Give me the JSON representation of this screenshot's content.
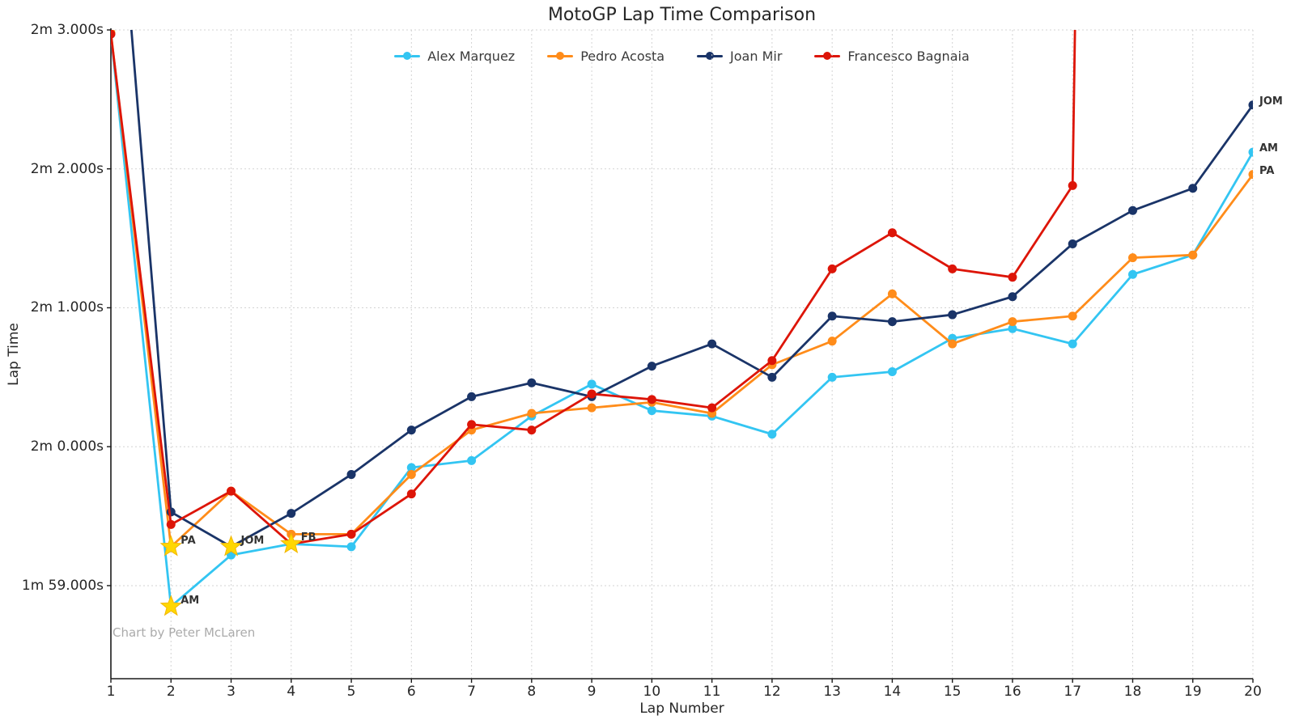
{
  "chart_data": {
    "type": "line",
    "title": "MotoGP Lap Time Comparison",
    "xlabel": "Lap Number",
    "ylabel": "Lap Time",
    "x": [
      1,
      2,
      3,
      4,
      5,
      6,
      7,
      8,
      9,
      10,
      11,
      12,
      13,
      14,
      15,
      16,
      17,
      18,
      19,
      20
    ],
    "xlim": [
      1,
      20
    ],
    "ylim_seconds": [
      118.33,
      123.0
    ],
    "yticks_seconds": [
      119,
      120,
      121,
      122,
      123
    ],
    "ytick_labels": [
      "1m 59.000s",
      "2m 0.000s",
      "2m 1.000s",
      "2m 2.000s",
      "2m 3.000s"
    ],
    "grid": true,
    "grid_color": "#cfcfcf",
    "legend_position": "top-center",
    "series": [
      {
        "name": "Alex Marquez",
        "end_label": "AM",
        "color": "#33c5f2",
        "values": [
          122.97,
          118.85,
          119.22,
          119.3,
          119.28,
          119.85,
          119.9,
          120.22,
          120.45,
          120.26,
          120.22,
          120.09,
          120.5,
          120.54,
          120.78,
          120.85,
          120.74,
          121.24,
          121.38,
          122.12
        ]
      },
      {
        "name": "Pedro Acosta",
        "end_label": "PA",
        "color": "#ff8c1a",
        "values": [
          122.98,
          119.28,
          119.68,
          119.37,
          119.37,
          119.8,
          120.12,
          120.24,
          120.28,
          120.32,
          120.24,
          120.59,
          120.76,
          121.1,
          120.74,
          120.9,
          120.94,
          121.36,
          121.38,
          121.96
        ]
      },
      {
        "name": "Joan Mir",
        "end_label": "JOM",
        "color": "#1a3468",
        "values": [
          124.8,
          119.53,
          119.28,
          119.52,
          119.8,
          120.12,
          120.36,
          120.46,
          120.36,
          120.58,
          120.74,
          120.5,
          120.94,
          120.9,
          120.95,
          121.08,
          121.46,
          121.7,
          121.86,
          122.46
        ]
      },
      {
        "name": "Francesco Bagnaia",
        "end_label": null,
        "color": "#dd1508",
        "values": [
          122.97,
          119.44,
          119.68,
          119.3,
          119.37,
          119.66,
          120.16,
          120.12,
          120.38,
          120.34,
          120.28,
          120.62,
          121.28,
          121.54,
          121.28,
          121.22,
          121.88,
          null,
          null,
          null
        ],
        "off_scale_after_last": true
      }
    ],
    "fastest_lap_stars": [
      {
        "label": "AM",
        "series": "Alex Marquez",
        "lap": 2,
        "seconds": 118.85
      },
      {
        "label": "PA",
        "series": "Pedro Acosta",
        "lap": 2,
        "seconds": 119.28
      },
      {
        "label": "JOM",
        "series": "Joan Mir",
        "lap": 3,
        "seconds": 119.28
      },
      {
        "label": "FB",
        "series": "Francesco Bagnaia",
        "lap": 4,
        "seconds": 119.3
      }
    ],
    "star_color": "#ffd700",
    "credit": "Chart by Peter McLaren"
  }
}
